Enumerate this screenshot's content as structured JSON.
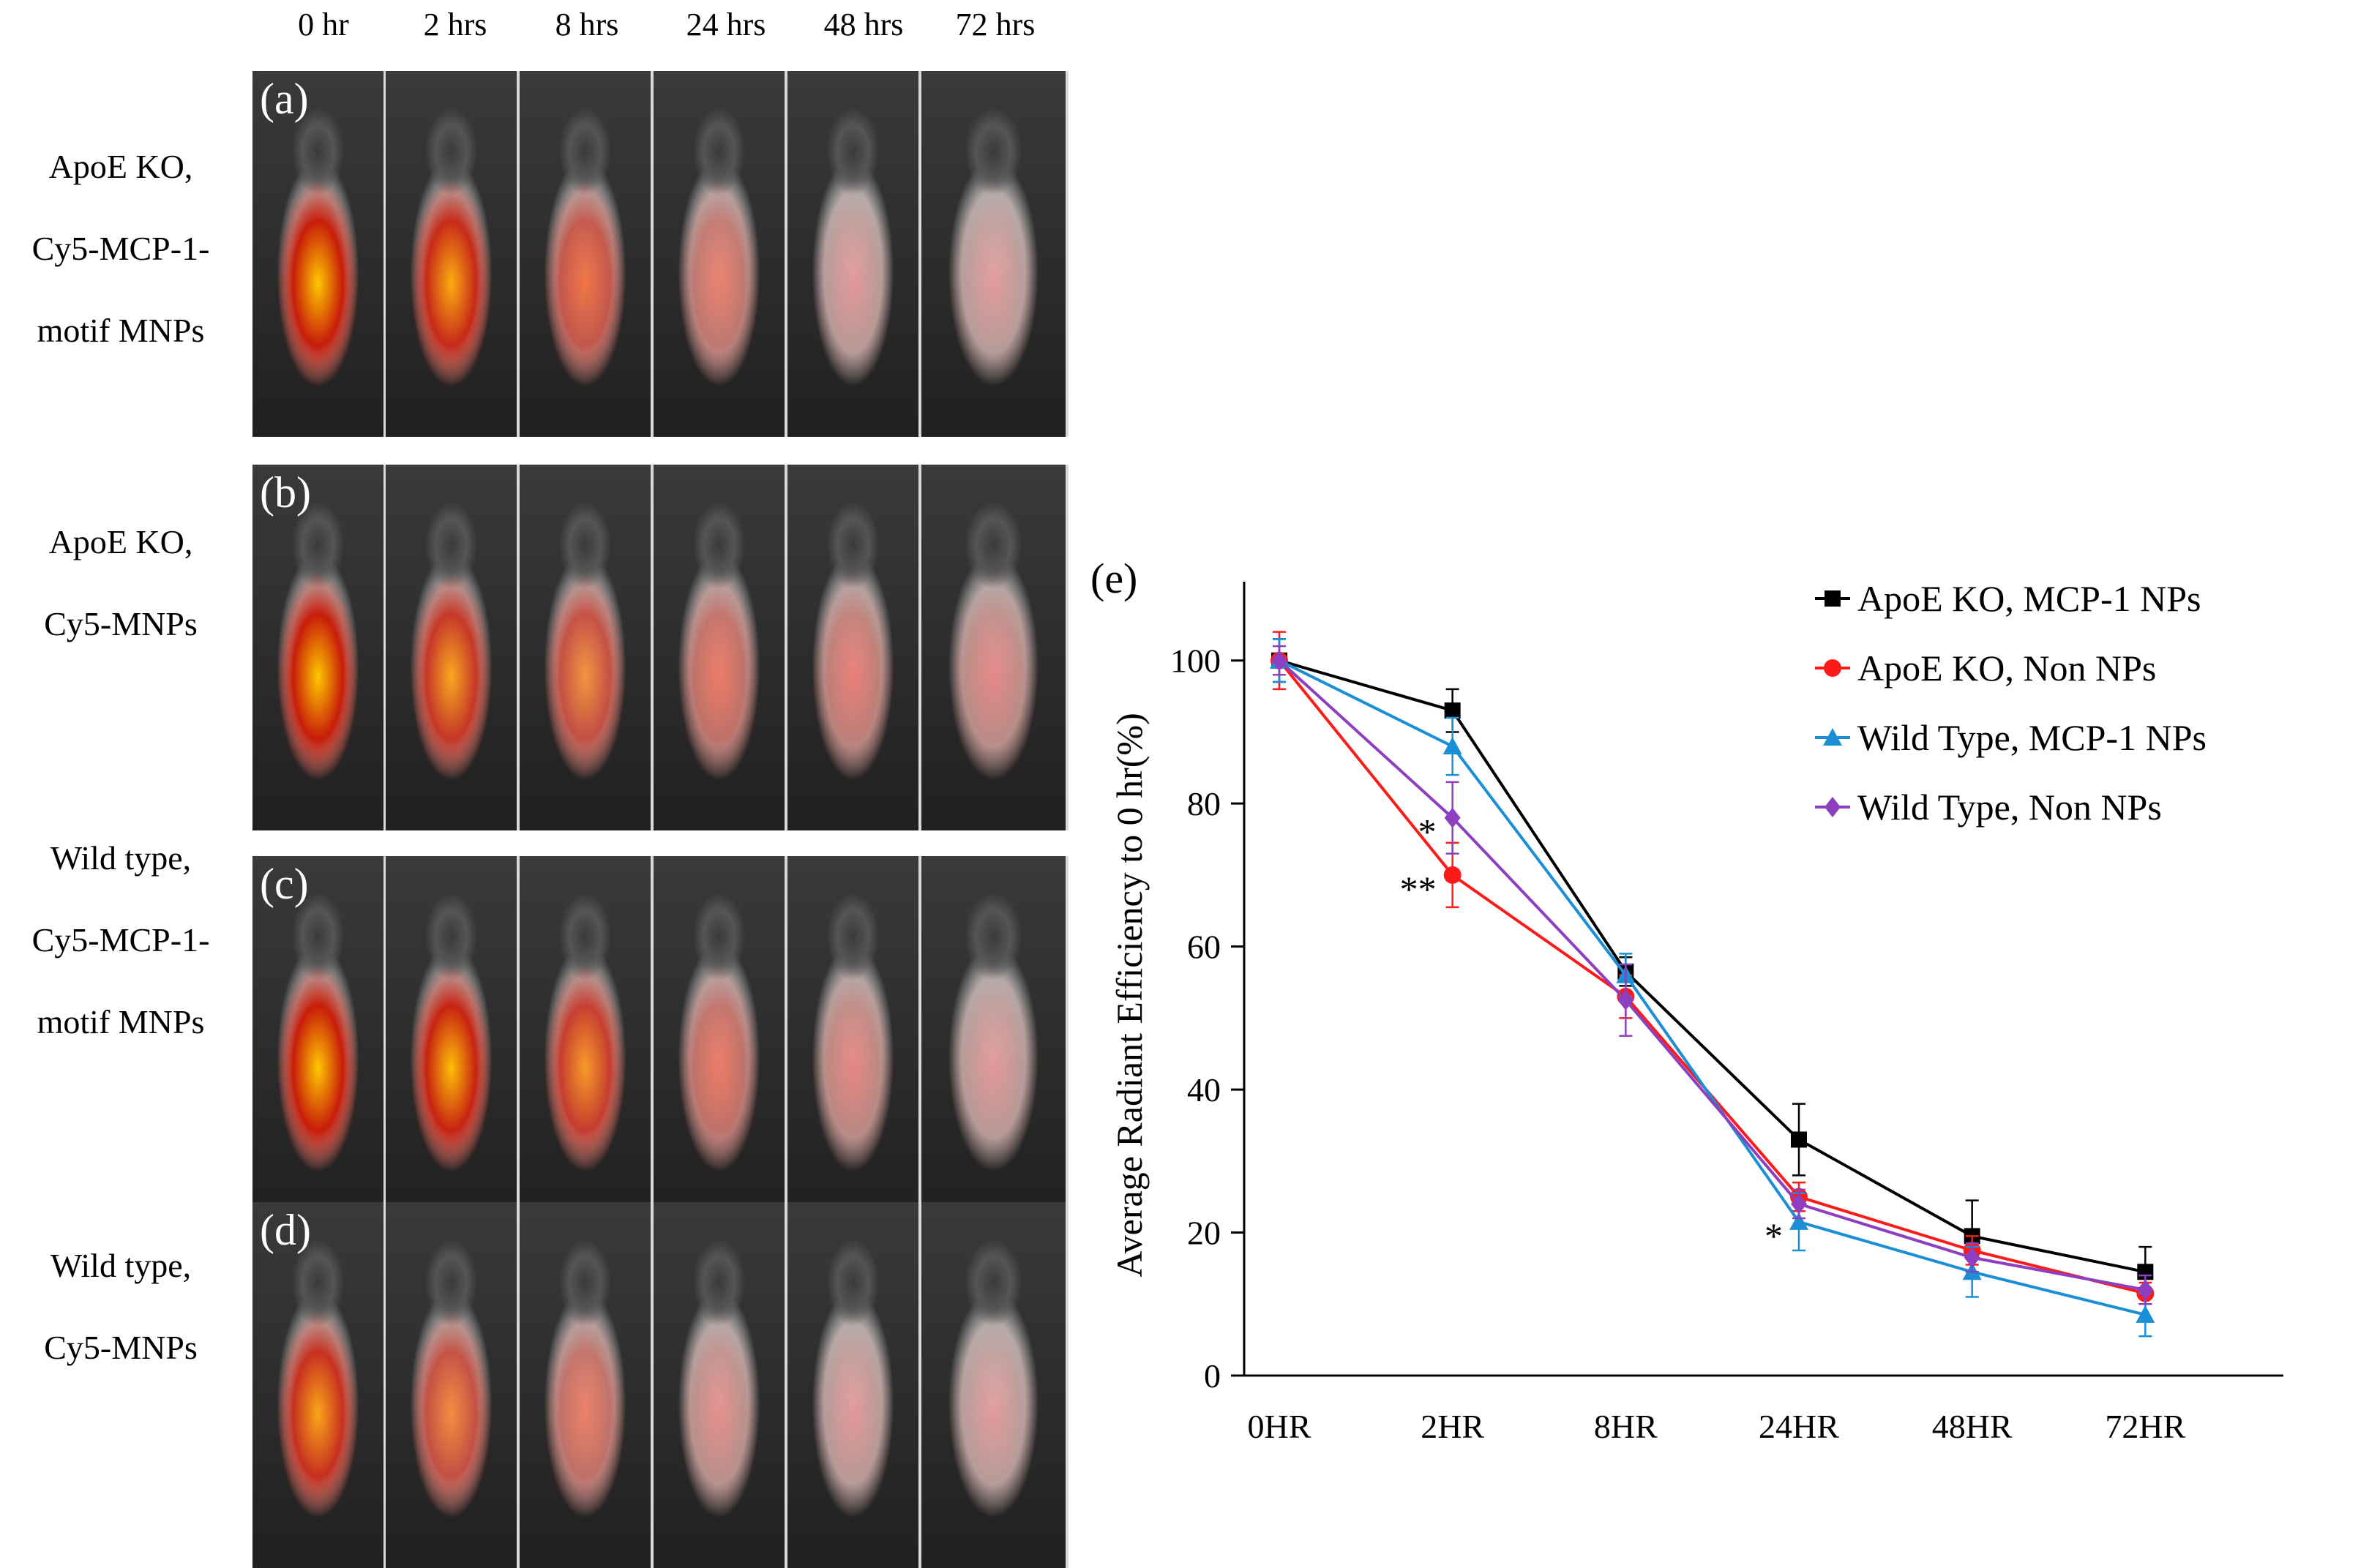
{
  "time_labels": [
    "0 hr",
    "2 hrs",
    "8 hrs",
    "24 hrs",
    "48 hrs",
    "72 hrs"
  ],
  "panels": [
    {
      "letter": "(a)",
      "label_lines": [
        "ApoE KO,",
        "Cy5-MCP-1-",
        "motif MNPs"
      ],
      "signal": [
        1.0,
        0.9,
        0.55,
        0.3,
        0.05,
        0.03
      ],
      "heat": [
        1.0,
        0.85,
        0.35,
        0.2,
        0.0,
        0.0
      ]
    },
    {
      "letter": "(b)",
      "label_lines": [
        "ApoE KO,",
        "Cy5-MNPs"
      ],
      "signal": [
        1.0,
        0.8,
        0.6,
        0.35,
        0.25,
        0.15
      ],
      "heat": [
        1.0,
        0.8,
        0.6,
        0.2,
        0.1,
        0.0
      ]
    },
    {
      "letter": "(c)",
      "label_lines": [
        "Wild type,",
        "Cy5-MCP-1-",
        "motif MNPs"
      ],
      "signal": [
        1.0,
        0.95,
        0.75,
        0.35,
        0.18,
        0.05
      ],
      "heat": [
        1.0,
        0.95,
        0.7,
        0.2,
        0.05,
        0.0
      ]
    },
    {
      "letter": "(d)",
      "label_lines": [
        "Wild type,",
        "Cy5-MNPs"
      ],
      "signal": [
        0.85,
        0.6,
        0.35,
        0.12,
        0.05,
        0.03
      ],
      "heat": [
        0.8,
        0.55,
        0.25,
        0.05,
        0.0,
        0.0
      ]
    }
  ],
  "chart_data": {
    "type": "line",
    "panel_label": "(e)",
    "categories": [
      "0HR",
      "2HR",
      "8HR",
      "24HR",
      "48HR",
      "72HR"
    ],
    "ylabel": "Average Radiant Efficiency to 0 hr(%)",
    "xlabel": "",
    "ylim": [
      0,
      110
    ],
    "yticks": [
      0,
      20,
      40,
      60,
      80,
      100
    ],
    "legend_position": "top-right",
    "series": [
      {
        "name": "ApoE KO, MCP-1 NPs",
        "color": "#000000",
        "marker": "square",
        "values": [
          100,
          93,
          56.5,
          33,
          19.5,
          14.5
        ],
        "errors": [
          3,
          3,
          2,
          5,
          5,
          3.5
        ]
      },
      {
        "name": "ApoE KO, Non NPs",
        "color": "#ff1a1a",
        "marker": "circle",
        "values": [
          100,
          70,
          53,
          25,
          17.5,
          11.5
        ],
        "errors": [
          4,
          4.5,
          3,
          2,
          2,
          1.5
        ]
      },
      {
        "name": "Wild Type, MCP-1 NPs",
        "color": "#1a8fd6",
        "marker": "triangle",
        "values": [
          100,
          88,
          56,
          21.5,
          14.5,
          8.5
        ],
        "errors": [
          3,
          4,
          3,
          4,
          3.5,
          3
        ]
      },
      {
        "name": "Wild Type, Non NPs",
        "color": "#8e3fbf",
        "marker": "diamond",
        "values": [
          100,
          78,
          52.5,
          24,
          16.5,
          12
        ],
        "errors": [
          2,
          5,
          5,
          2,
          2,
          2
        ]
      }
    ],
    "annotations": [
      {
        "text": "*",
        "category": "2HR",
        "y": 78
      },
      {
        "text": "**",
        "category": "2HR",
        "y": 70
      },
      {
        "text": "*",
        "category": "24HR",
        "y": 21.5
      }
    ]
  }
}
